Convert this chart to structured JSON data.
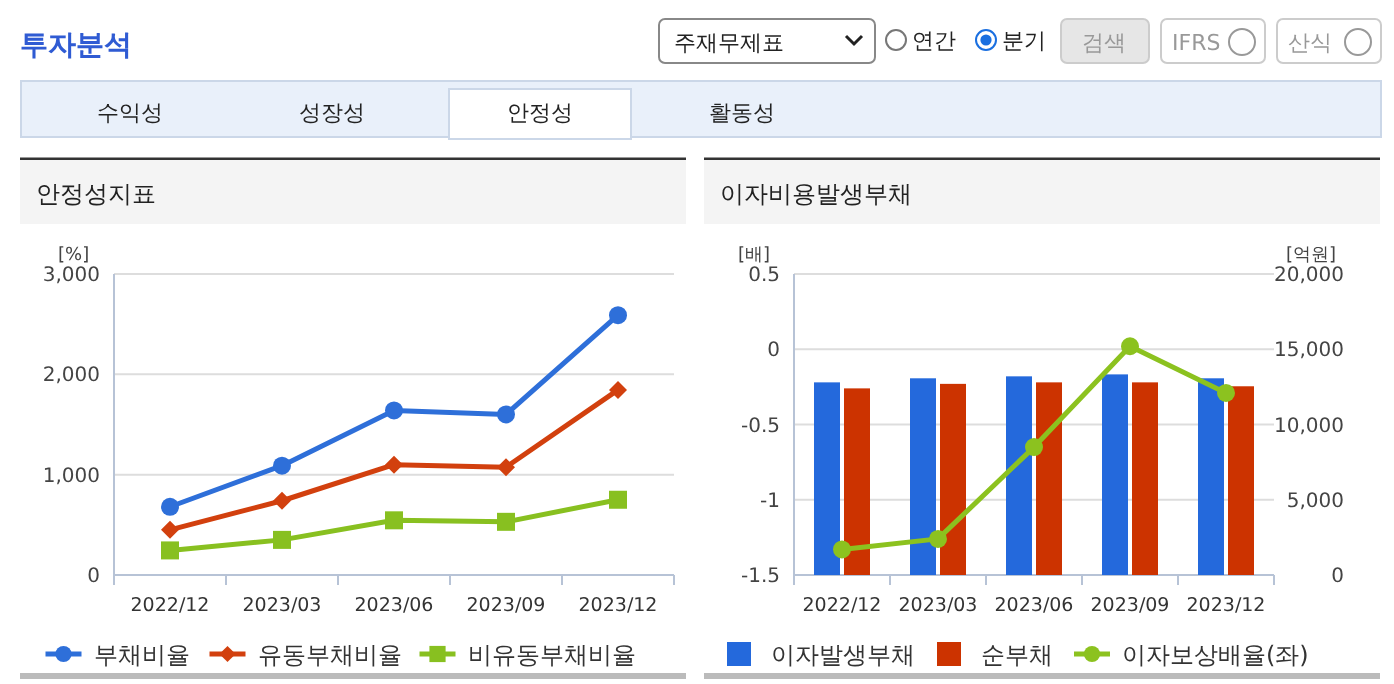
{
  "chart_data": [
    {
      "type": "other",
      "title": "투자분석",
      "annotations": [
        "주재무제표",
        "연간",
        "분기",
        "검색",
        "IFRS",
        "산식",
        "수익성",
        "성장성",
        "안정성",
        "활동성"
      ]
    },
    {
      "type": "line",
      "title": "안정성지표",
      "ylabel": "[%]",
      "categories": [
        "2022/12",
        "2023/03",
        "2023/06",
        "2023/09",
        "2023/12"
      ],
      "series": [
        {
          "name": "부채비율",
          "color": "#2e6fd9",
          "marker": "circle",
          "values": [
            680,
            1090,
            1640,
            1600,
            2590
          ]
        },
        {
          "name": "유동부채비율",
          "color": "#d2400e",
          "marker": "diamond",
          "values": [
            450,
            740,
            1100,
            1075,
            1845
          ]
        },
        {
          "name": "비유동부채비율",
          "color": "#88c020",
          "marker": "square",
          "values": [
            245,
            350,
            545,
            530,
            750
          ]
        }
      ],
      "ylim": [
        0,
        3000
      ],
      "yticks": [
        0,
        {
          "value": 1000,
          "label": "1,000"
        },
        {
          "value": 2000,
          "label": "2,000"
        },
        {
          "value": 3000,
          "label": "3,000"
        }
      ],
      "grid": "y",
      "legend": "bottom"
    },
    {
      "type": "bar",
      "title": "이자비용발생부채",
      "ylabel": "[배]",
      "y2label": "[억원]",
      "categories": [
        "2022/12",
        "2023/03",
        "2023/06",
        "2023/09",
        "2023/12"
      ],
      "series": [
        {
          "name": "이자발생부채",
          "color": "#2469dc",
          "axis": "y2",
          "values": [
            12800,
            13070,
            13200,
            13330,
            13070
          ]
        },
        {
          "name": "순부채",
          "color": "#cc3300",
          "axis": "y2",
          "values": [
            12400,
            12700,
            12800,
            12800,
            12540
          ]
        },
        {
          "name": "이자보상배율(좌)",
          "type": "line",
          "marker": "circle",
          "color": "#8cc21f",
          "axis": "y",
          "values": [
            -1.33,
            -1.26,
            -0.65,
            0.02,
            -0.29
          ]
        }
      ],
      "ylim": [
        -1.5,
        0.5
      ],
      "yticks": [
        -1.5,
        -1,
        -0.5,
        0,
        0.5
      ],
      "y2lim": [
        0,
        20000
      ],
      "y2ticks": [
        0,
        {
          "value": 5000,
          "label": "5,000"
        },
        {
          "value": 10000,
          "label": "10,000"
        },
        {
          "value": 15000,
          "label": "15,000"
        },
        {
          "value": 20000,
          "label": "20,000"
        }
      ],
      "grid": "y",
      "legend": "bottom"
    }
  ]
}
